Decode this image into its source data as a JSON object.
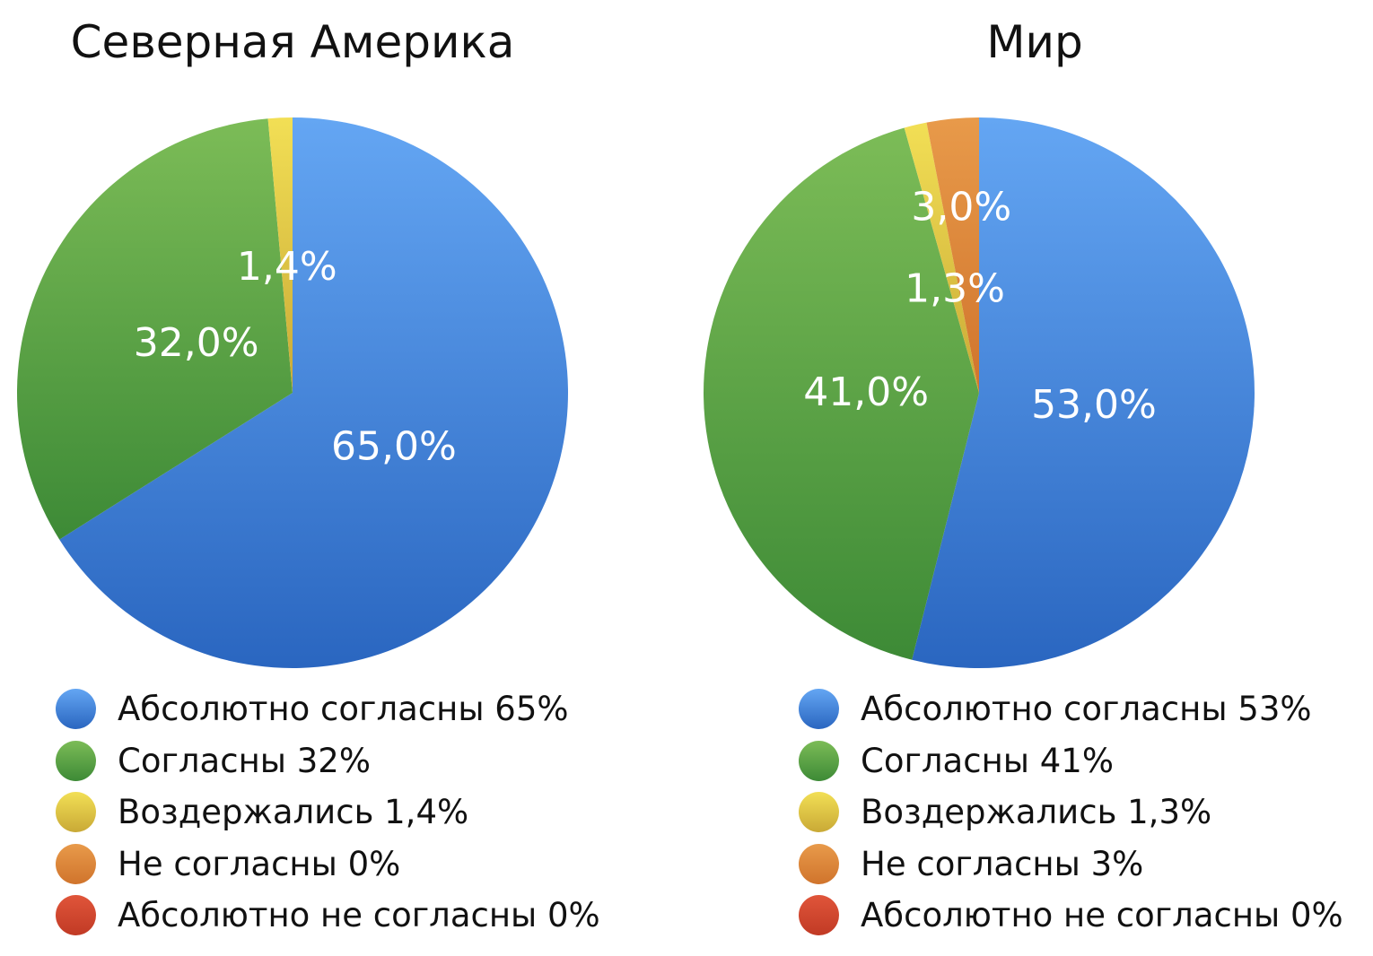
{
  "colors": {
    "absolutely_agree": [
      "#64a6f3",
      "#2a66c0"
    ],
    "agree": [
      "#7cbc57",
      "#3d8a36"
    ],
    "abstained": [
      "#f2df55",
      "#c9a936"
    ],
    "disagree": [
      "#e89a4a",
      "#d0742c"
    ],
    "absolutely_disagree": [
      "#e0553a",
      "#c13a25"
    ]
  },
  "chart_data": [
    {
      "type": "pie",
      "title": "Северная Америка",
      "categories": [
        "Абсолютно согласны",
        "Согласны",
        "Воздержались",
        "Не согласны",
        "Абсолютно не согласны"
      ],
      "values": [
        65,
        32,
        1.4,
        0,
        0
      ],
      "slice_labels": [
        "65,0%",
        "32,0%",
        "1,4%",
        "",
        ""
      ],
      "legend": [
        "Абсолютно согласны 65%",
        "Согласны 32%",
        "Воздержались 1,4%",
        "Не согласны 0%",
        "Абсолютно не согласны 0%"
      ],
      "legend_position": "bottom"
    },
    {
      "type": "pie",
      "title": "Мир",
      "categories": [
        "Абсолютно согласны",
        "Согласны",
        "Воздержались",
        "Не согласны",
        "Абсолютно не согласны"
      ],
      "values": [
        53,
        41,
        1.3,
        3,
        0
      ],
      "slice_labels": [
        "53,0%",
        "41,0%",
        "1,3%",
        "3,0%",
        ""
      ],
      "legend": [
        "Абсолютно согласны 53%",
        "Согласны 41%",
        "Воздержались 1,3%",
        "Не согласны 3%",
        "Абсолютно не согласны 0%"
      ],
      "legend_position": "bottom"
    }
  ]
}
